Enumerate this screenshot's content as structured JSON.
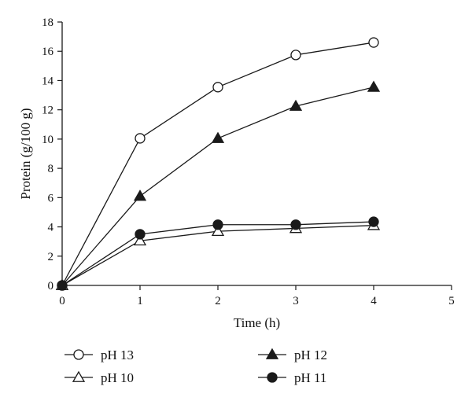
{
  "chart_data": {
    "type": "line",
    "title": "",
    "xlabel": "Time (h)",
    "ylabel": "Protein (g/100 g)",
    "xlim": [
      0,
      5
    ],
    "ylim": [
      0,
      18
    ],
    "x_ticks": [
      0,
      1,
      2,
      3,
      4,
      5
    ],
    "y_ticks": [
      0,
      2,
      4,
      6,
      8,
      10,
      12,
      14,
      16,
      18
    ],
    "grid": false,
    "legend_position": "bottom",
    "x": [
      0,
      1,
      2,
      3,
      4
    ],
    "series": [
      {
        "name": "pH 13",
        "marker": "open-circle",
        "values": [
          0,
          10.05,
          13.55,
          15.75,
          16.6
        ]
      },
      {
        "name": "pH 12",
        "marker": "filled-triangle",
        "values": [
          0,
          6.1,
          10.05,
          12.25,
          13.55
        ]
      },
      {
        "name": "pH 10",
        "marker": "open-triangle",
        "values": [
          0,
          3.05,
          3.7,
          3.9,
          4.1
        ]
      },
      {
        "name": "pH 11",
        "marker": "filled-circle",
        "values": [
          0,
          3.5,
          4.15,
          4.15,
          4.35
        ]
      }
    ],
    "colors": {
      "line": "#1a1a1a",
      "marker_fill_open": "#ffffff",
      "marker_fill_solid": "#1a1a1a"
    }
  }
}
